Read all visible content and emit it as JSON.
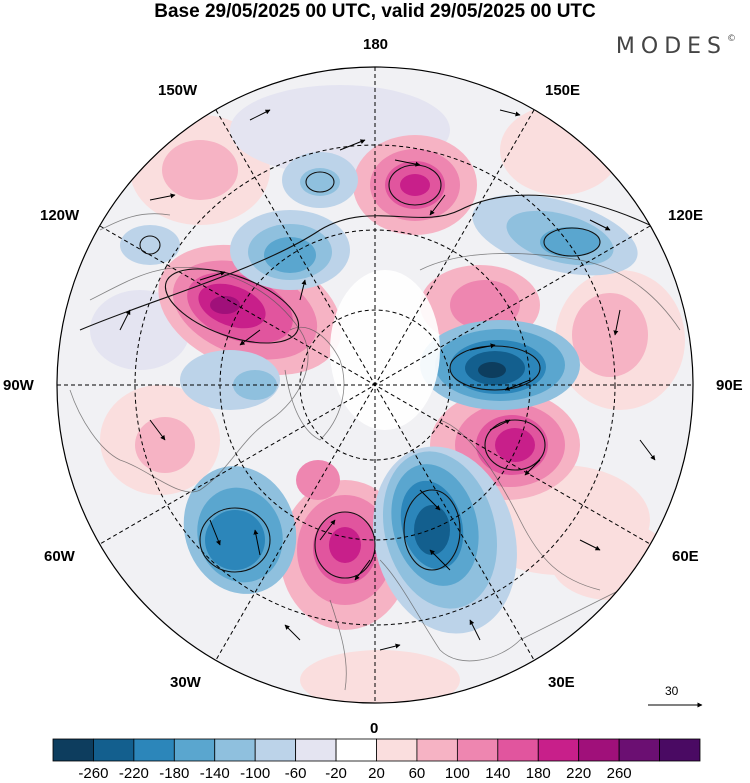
{
  "title": "Base 29/05/2025 00 UTC, valid 29/05/2025 00 UTC",
  "logo": "MODES",
  "logo_mark": "©",
  "longitude_labels": {
    "n180": "180",
    "e150": "150E",
    "e120": "120E",
    "e90": "90E",
    "e60": "60E",
    "e30": "30E",
    "zero": "0",
    "w30": "30W",
    "w60": "60W",
    "w90": "90W",
    "w120": "120W",
    "w150": "150W"
  },
  "reference_vector_label": "30",
  "colorbar": {
    "tick_labels": [
      "-260",
      "-220",
      "-180",
      "-140",
      "-100",
      "-60",
      "-20",
      "20",
      "60",
      "100",
      "140",
      "180",
      "220",
      "260"
    ],
    "colors": [
      "#0d3d5e",
      "#135f8e",
      "#2c86ba",
      "#5aa6cf",
      "#8fc0de",
      "#bcd3e9",
      "#e4e4f1",
      "#ffffff",
      "#fadede",
      "#f6b3c4",
      "#ee86b0",
      "#e1559e",
      "#c81f8a",
      "#a0107a",
      "#6b0f72",
      "#4a0a63"
    ]
  },
  "anomaly_centers": [
    {
      "sign": "positive",
      "colors": [
        "#fadede",
        "#f6b3c4",
        "#ee86b0",
        "#e1559e",
        "#c81f8a"
      ]
    },
    {
      "sign": "negative",
      "colors": [
        "#e4e4f1",
        "#bcd3e9",
        "#8fc0de",
        "#5aa6cf",
        "#2c86ba",
        "#135f8e",
        "#0d3d5e"
      ]
    }
  ]
}
